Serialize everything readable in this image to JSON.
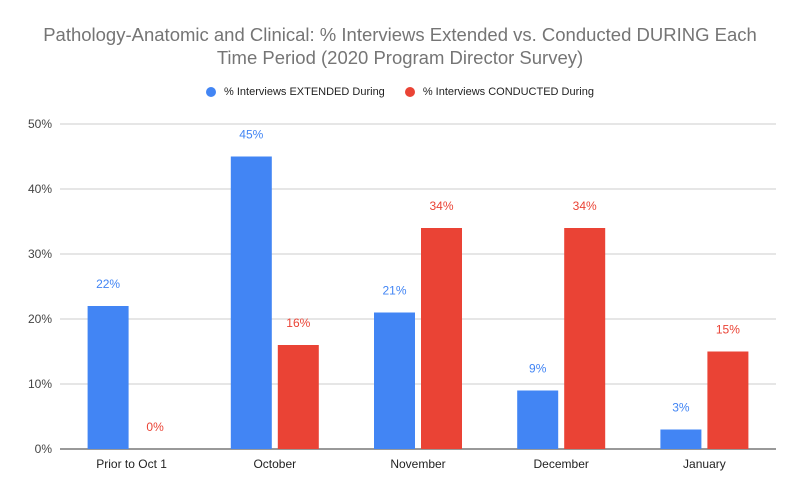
{
  "chart_data": {
    "type": "bar",
    "title_lines": [
      "Pathology-Anatomic and Clinical: % Interviews Extended vs. Conducted DURING Each",
      "Time Period (2020 Program Director Survey)"
    ],
    "categories": [
      "Prior to Oct 1",
      "October",
      "November",
      "December",
      "January"
    ],
    "series": [
      {
        "name": "% Interviews EXTENDED During",
        "color": "#4285f4",
        "values": [
          22,
          45,
          21,
          9,
          3
        ],
        "labels": [
          "22%",
          "45%",
          "21%",
          "9%",
          "3%"
        ]
      },
      {
        "name": "% Interviews CONDUCTED During",
        "color": "#ea4335",
        "values": [
          0,
          16,
          34,
          34,
          15
        ],
        "labels": [
          "0%",
          "16%",
          "34%",
          "34%",
          "15%"
        ]
      }
    ],
    "ylim": [
      0,
      50
    ],
    "yticks": [
      0,
      10,
      20,
      30,
      40,
      50
    ],
    "ytick_labels": [
      "0%",
      "10%",
      "20%",
      "30%",
      "40%",
      "50%"
    ],
    "xlabel": "",
    "ylabel": "",
    "grid": true,
    "legend_position": "top-center"
  }
}
